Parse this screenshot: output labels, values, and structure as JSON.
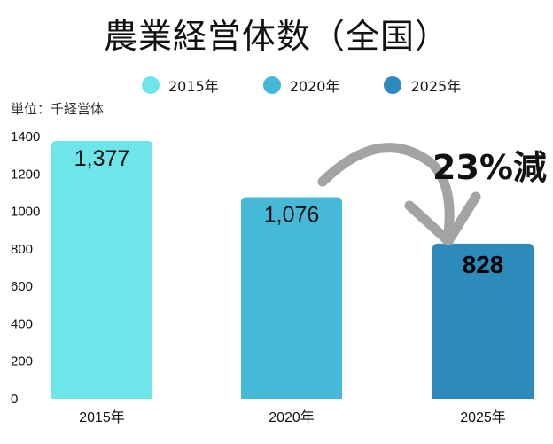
{
  "chart_data": {
    "type": "bar",
    "title": "農業経営体数（全国）",
    "unit_label": "単位：千経営体",
    "categories": [
      "2015年",
      "2020年",
      "2025年"
    ],
    "values": [
      1377,
      1076,
      828
    ],
    "value_labels": [
      "1,377",
      "1,076",
      "828"
    ],
    "colors": [
      "#6ee5e8",
      "#45b9d7",
      "#2c8bbb"
    ],
    "legend": [
      {
        "label": "2015年",
        "color": "#6ee5e8"
      },
      {
        "label": "2020年",
        "color": "#45b9d7"
      },
      {
        "label": "2025年",
        "color": "#2c8bbb"
      }
    ],
    "yticks": [
      0,
      200,
      400,
      600,
      800,
      1000,
      1200,
      1400
    ],
    "ylim": [
      0,
      1400
    ],
    "annotation": "23%減",
    "arrow_color": "#a3a3a3"
  }
}
